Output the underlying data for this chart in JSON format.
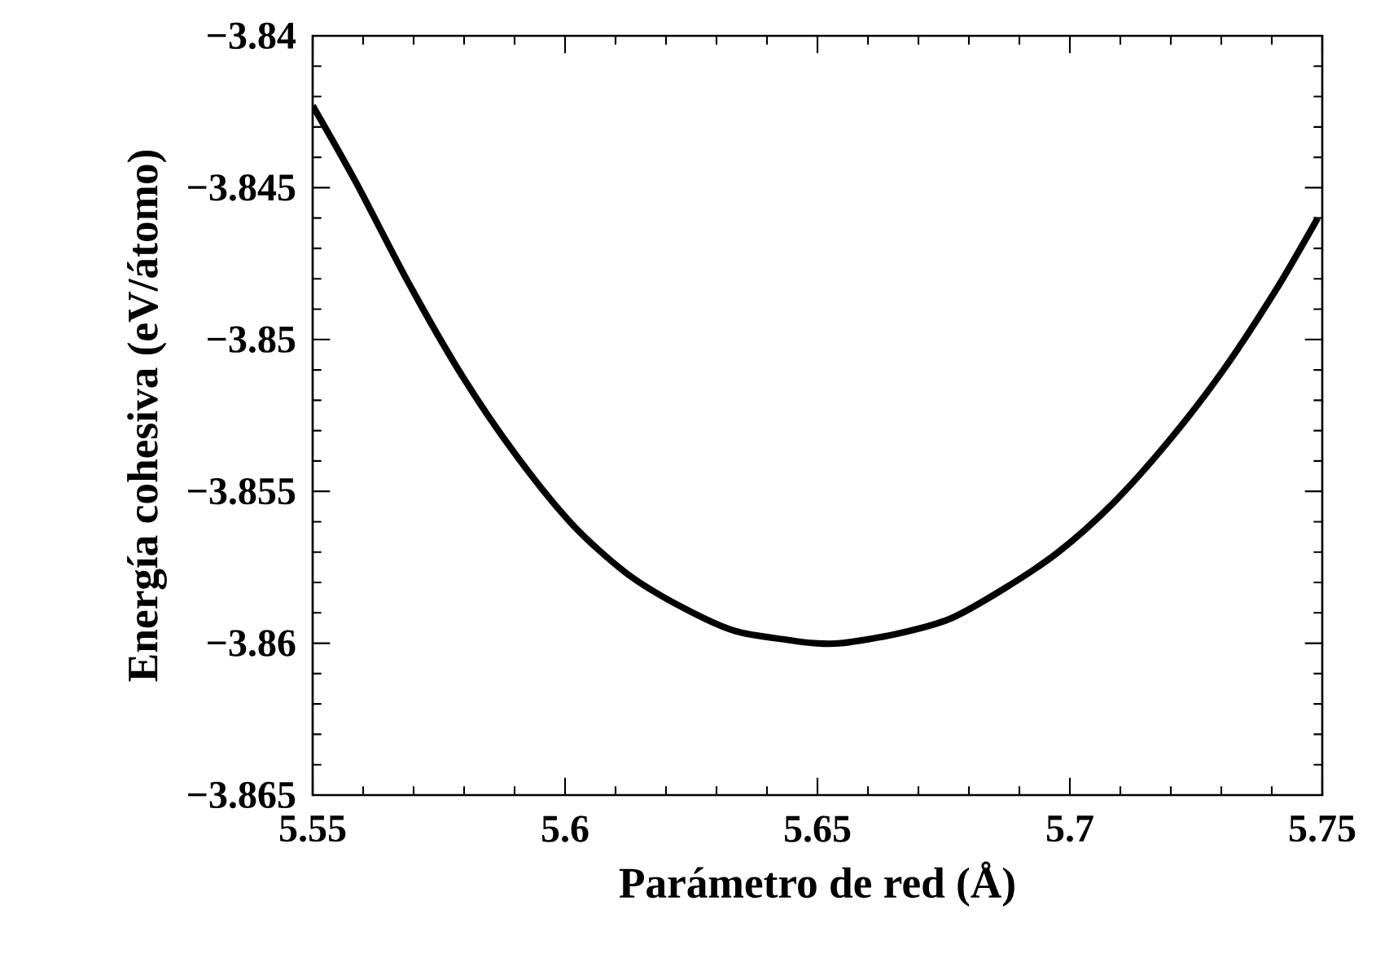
{
  "chart_data": {
    "type": "line",
    "xlabel": "Parámetro de red (Å)",
    "ylabel": "Energía cohesiva (eV/átomo)",
    "x": [
      5.55,
      5.5585,
      5.5692,
      5.58,
      5.5907,
      5.6015,
      5.6122,
      5.623,
      5.6337,
      5.6445,
      5.6494,
      5.6547,
      5.6655,
      5.6762,
      5.687,
      5.6977,
      5.7085,
      5.7193,
      5.73,
      5.7407,
      5.7491
    ],
    "series": [
      {
        "color": "#000000",
        "values": [
          -3.8423,
          -3.8448,
          -3.8482,
          -3.8513,
          -3.8539,
          -3.8561,
          -3.8577,
          -3.8588,
          -3.8596,
          -3.8599,
          -3.86,
          -3.86,
          -3.8597,
          -3.8592,
          -3.8582,
          -3.857,
          -3.8554,
          -3.8534,
          -3.8511,
          -3.8484,
          -3.846
        ]
      }
    ],
    "xlim": [
      5.55,
      5.75
    ],
    "ylim": [
      -3.865,
      -3.84
    ],
    "xticks": [
      5.55,
      5.6,
      5.65,
      5.7,
      5.75
    ],
    "yticks": [
      {
        "value": -3.865,
        "label": "−3.865"
      },
      {
        "value": -3.86,
        "label": "−3.86"
      },
      {
        "value": -3.855,
        "label": "−3.855"
      },
      {
        "value": -3.85,
        "label": "−3.85"
      },
      {
        "value": -3.845,
        "label": "−3.845"
      },
      {
        "value": -3.84,
        "label": "−3.84"
      }
    ],
    "grid": false,
    "marker": "none",
    "line_style": "solid"
  }
}
